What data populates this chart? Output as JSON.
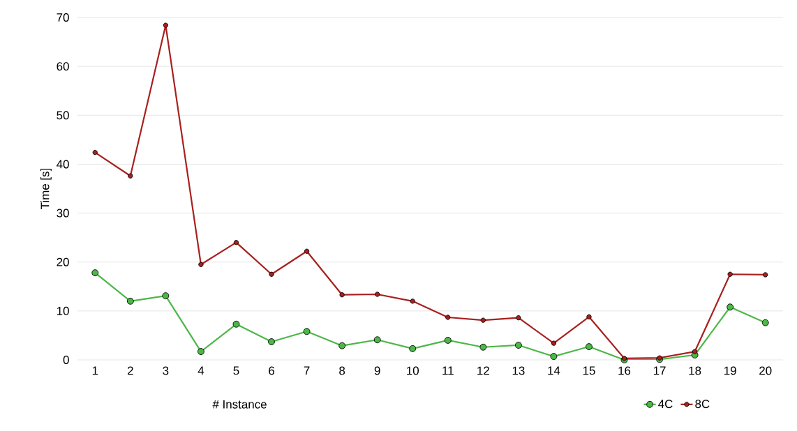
{
  "chart_data": {
    "type": "line",
    "xlabel": "# Instance",
    "ylabel": "Time [s]",
    "categories": [
      "1",
      "2",
      "3",
      "4",
      "5",
      "6",
      "7",
      "8",
      "9",
      "10",
      "11",
      "12",
      "13",
      "14",
      "15",
      "16",
      "17",
      "18",
      "19",
      "20"
    ],
    "series": [
      {
        "name": "4C",
        "color": "#4cb848",
        "values": [
          17.8,
          12.0,
          13.1,
          1.7,
          7.3,
          3.7,
          5.8,
          2.9,
          4.1,
          2.3,
          4.0,
          2.6,
          3.0,
          0.7,
          2.7,
          0.0,
          0.1,
          1.0,
          10.8,
          7.6
        ]
      },
      {
        "name": "8C",
        "color": "#a8201f",
        "values": [
          42.4,
          37.6,
          68.4,
          19.5,
          24.0,
          17.5,
          22.2,
          13.3,
          13.4,
          12.0,
          8.7,
          8.1,
          8.6,
          3.4,
          8.8,
          0.3,
          0.4,
          1.7,
          17.5,
          17.4
        ]
      }
    ],
    "ylim": [
      0,
      70
    ],
    "yticks": [
      0,
      10,
      20,
      30,
      40,
      50,
      60,
      70
    ],
    "grid": "y",
    "legend": "bottom right",
    "marker": "circle",
    "line_style": "solid"
  }
}
